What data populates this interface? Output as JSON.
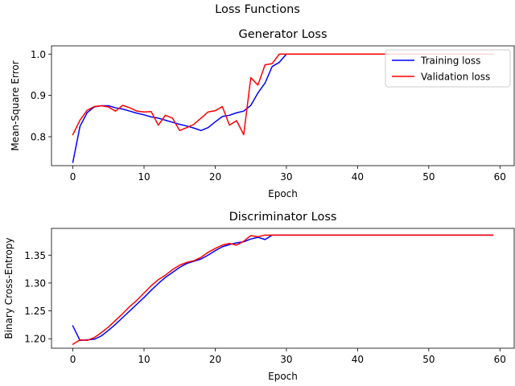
{
  "figure": {
    "title": "Loss Functions"
  },
  "chart_data": [
    {
      "type": "line",
      "title": "Generator Loss",
      "xlabel": "Epoch",
      "ylabel": "Mean-Square Error",
      "xlim": [
        -3,
        62
      ],
      "ylim": [
        0.73,
        1.02
      ],
      "xticks": [
        0,
        10,
        20,
        30,
        40,
        50,
        60
      ],
      "yticks": [
        0.8,
        0.9,
        1.0
      ],
      "ytick_labels": [
        "0.8",
        "0.9",
        "1.0"
      ],
      "legend": {
        "placement": "upper-right"
      },
      "x": [
        0,
        1,
        2,
        3,
        4,
        5,
        6,
        7,
        8,
        9,
        10,
        11,
        12,
        13,
        14,
        15,
        16,
        17,
        18,
        19,
        20,
        21,
        22,
        23,
        24,
        25,
        26,
        27,
        28,
        29,
        30,
        31,
        32,
        33,
        34,
        35,
        36,
        37,
        38,
        39,
        40,
        41,
        42,
        43,
        44,
        45,
        46,
        47,
        48,
        49,
        50,
        51,
        52,
        53,
        54,
        55,
        56,
        57,
        58,
        59
      ],
      "series": [
        {
          "name": "Training loss",
          "color": "#0000ff",
          "values": [
            0.738,
            0.825,
            0.858,
            0.872,
            0.875,
            0.875,
            0.87,
            0.867,
            0.862,
            0.857,
            0.853,
            0.848,
            0.845,
            0.84,
            0.835,
            0.83,
            0.826,
            0.821,
            0.815,
            0.822,
            0.836,
            0.849,
            0.852,
            0.858,
            0.862,
            0.876,
            0.906,
            0.93,
            0.97,
            0.98,
            1.0,
            1.0,
            1.0,
            1.0,
            1.0,
            1.0,
            1.0,
            1.0,
            1.0,
            1.0,
            1.0,
            1.0,
            1.0,
            1.0,
            1.0,
            1.0,
            1.0,
            1.0,
            1.0,
            1.0,
            1.0,
            1.0,
            1.0,
            1.0,
            1.0,
            1.0,
            1.0,
            1.0,
            1.0,
            1.0
          ]
        },
        {
          "name": "Validation loss",
          "color": "#ff0000",
          "values": [
            0.805,
            0.84,
            0.864,
            0.873,
            0.875,
            0.872,
            0.862,
            0.876,
            0.87,
            0.862,
            0.86,
            0.861,
            0.828,
            0.852,
            0.845,
            0.815,
            0.822,
            0.83,
            0.845,
            0.86,
            0.863,
            0.873,
            0.828,
            0.839,
            0.805,
            0.943,
            0.925,
            0.974,
            0.977,
            1.0,
            1.0,
            1.0,
            1.0,
            1.0,
            1.0,
            1.0,
            1.0,
            1.0,
            1.0,
            1.0,
            1.0,
            1.0,
            1.0,
            1.0,
            1.0,
            1.0,
            1.0,
            1.0,
            1.0,
            1.0,
            1.0,
            1.0,
            1.0,
            1.0,
            1.0,
            1.0,
            1.0,
            1.0,
            1.0,
            1.0
          ]
        }
      ]
    },
    {
      "type": "line",
      "title": "Discriminator Loss",
      "xlabel": "Epoch",
      "ylabel": "Binary Cross-Entropy",
      "xlim": [
        -3,
        62
      ],
      "ylim": [
        1.183,
        1.398
      ],
      "xticks": [
        0,
        10,
        20,
        30,
        40,
        50,
        60
      ],
      "yticks": [
        1.2,
        1.25,
        1.3,
        1.35
      ],
      "ytick_labels": [
        "1.20",
        "1.25",
        "1.30",
        "1.35"
      ],
      "x": [
        0,
        1,
        2,
        3,
        4,
        5,
        6,
        7,
        8,
        9,
        10,
        11,
        12,
        13,
        14,
        15,
        16,
        17,
        18,
        19,
        20,
        21,
        22,
        23,
        24,
        25,
        26,
        27,
        28,
        29,
        30,
        31,
        32,
        33,
        34,
        35,
        36,
        37,
        38,
        39,
        40,
        41,
        42,
        43,
        44,
        45,
        46,
        47,
        48,
        49,
        50,
        51,
        52,
        53,
        54,
        55,
        56,
        57,
        58,
        59
      ],
      "series": [
        {
          "name": "Training loss",
          "color": "#0000ff",
          "values": [
            1.223,
            1.197,
            1.198,
            1.199,
            1.205,
            1.215,
            1.226,
            1.238,
            1.25,
            1.262,
            1.274,
            1.287,
            1.299,
            1.31,
            1.319,
            1.328,
            1.335,
            1.339,
            1.343,
            1.35,
            1.358,
            1.365,
            1.369,
            1.372,
            1.374,
            1.379,
            1.382,
            1.378,
            1.386,
            1.386,
            1.386,
            1.386,
            1.386,
            1.386,
            1.386,
            1.386,
            1.386,
            1.386,
            1.386,
            1.386,
            1.386,
            1.386,
            1.386,
            1.386,
            1.386,
            1.386,
            1.386,
            1.386,
            1.386,
            1.386,
            1.386,
            1.386,
            1.386,
            1.386,
            1.386,
            1.386,
            1.386,
            1.386,
            1.386,
            1.386
          ]
        },
        {
          "name": "Validation loss",
          "color": "#ff0000",
          "values": [
            1.19,
            1.198,
            1.197,
            1.202,
            1.211,
            1.221,
            1.233,
            1.245,
            1.258,
            1.269,
            1.282,
            1.295,
            1.306,
            1.314,
            1.324,
            1.332,
            1.337,
            1.34,
            1.346,
            1.355,
            1.362,
            1.368,
            1.371,
            1.368,
            1.375,
            1.385,
            1.383,
            1.386,
            1.386,
            1.386,
            1.386,
            1.386,
            1.386,
            1.386,
            1.386,
            1.386,
            1.386,
            1.386,
            1.386,
            1.386,
            1.386,
            1.386,
            1.386,
            1.386,
            1.386,
            1.386,
            1.386,
            1.386,
            1.386,
            1.386,
            1.386,
            1.386,
            1.386,
            1.386,
            1.386,
            1.386,
            1.386,
            1.386,
            1.386,
            1.386
          ]
        }
      ]
    }
  ]
}
